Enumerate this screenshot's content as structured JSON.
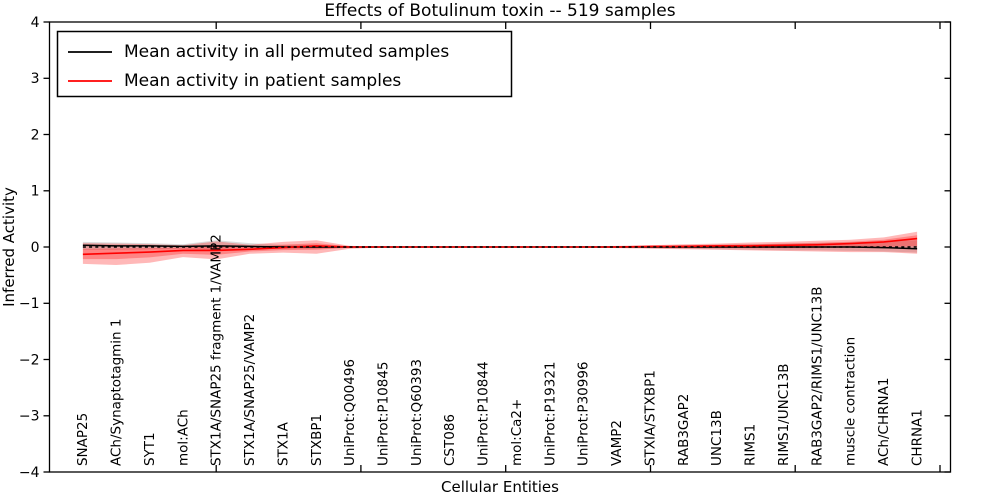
{
  "chart_data": {
    "type": "line",
    "title": "Effects of Botulinum toxin -- 519 samples",
    "xlabel": "Cellular Entities",
    "ylabel": "Inferred Activity",
    "ylim": [
      -4,
      4
    ],
    "yticks": [
      -4,
      -3,
      -2,
      -1,
      0,
      1,
      2,
      3,
      4
    ],
    "ytick_labels": [
      "−4",
      "−3",
      "−2",
      "−1",
      "0",
      "1",
      "2",
      "3",
      "4"
    ],
    "grid": false,
    "zero_line": {
      "y": 0,
      "color": "#000000",
      "style": "dashed"
    },
    "categories": [
      "SNAP25",
      "ACh/Synaptotagmin 1",
      "SYT1",
      "mol:ACh",
      "STX1A/SNAP25 fragment 1/VAMP2",
      "STX1A/SNAP25/VAMP2",
      "STX1A",
      "STXBP1",
      "UniProt:Q00496",
      "UniProt:P10845",
      "UniProt:Q60393",
      "CST086",
      "UniProt:P10844",
      "mol:Ca2+",
      "UniProt:P19321",
      "UniProt:P30996",
      "VAMP2",
      "STXIA/STXBP1",
      "RAB3GAP2",
      "UNC13B",
      "RIMS1",
      "RIMS1/UNC13B",
      "RAB3GAP2/RIMS1/UNC13B",
      "muscle contraction",
      "ACh/CHRNA1",
      "CHRNA1"
    ],
    "series": [
      {
        "name": "Mean activity in all permuted samples",
        "color": "#000000",
        "band_color": "#000000",
        "band_opacity": 0.14,
        "values": [
          0.03,
          0.02,
          0.02,
          0.01,
          0.02,
          0.01,
          0.0,
          0.0,
          0.0,
          0.0,
          0.0,
          0.0,
          0.0,
          0.0,
          0.0,
          0.0,
          0.0,
          0.0,
          0.0,
          0.0,
          0.0,
          0.0,
          0.0,
          0.0,
          -0.01,
          -0.03
        ],
        "band_lo": [
          -0.05,
          -0.05,
          -0.04,
          -0.03,
          -0.06,
          -0.04,
          -0.03,
          -0.03,
          -0.01,
          -0.01,
          -0.01,
          -0.01,
          -0.01,
          -0.01,
          -0.01,
          -0.01,
          -0.01,
          -0.02,
          -0.03,
          -0.04,
          -0.05,
          -0.06,
          -0.06,
          -0.07,
          -0.08,
          -0.1
        ],
        "band_hi": [
          0.09,
          0.08,
          0.07,
          0.05,
          0.12,
          0.07,
          0.04,
          0.04,
          0.01,
          0.01,
          0.01,
          0.01,
          0.01,
          0.01,
          0.01,
          0.01,
          0.01,
          0.02,
          0.03,
          0.04,
          0.05,
          0.06,
          0.07,
          0.08,
          0.1,
          0.12
        ]
      },
      {
        "name": "Mean activity in patient samples",
        "color": "#ff0000",
        "band_color": "#ff0000",
        "band_opacity": 0.28,
        "values": [
          -0.13,
          -0.11,
          -0.09,
          -0.06,
          -0.06,
          -0.04,
          -0.01,
          0.02,
          0.0,
          0.0,
          0.0,
          0.0,
          0.0,
          0.0,
          0.0,
          0.0,
          0.0,
          0.01,
          0.01,
          0.02,
          0.02,
          0.03,
          0.04,
          0.06,
          0.09,
          0.15
        ],
        "band_lo": [
          -0.3,
          -0.32,
          -0.28,
          -0.18,
          -0.22,
          -0.12,
          -0.1,
          -0.12,
          -0.03,
          -0.01,
          -0.01,
          -0.01,
          -0.01,
          -0.01,
          -0.01,
          -0.01,
          -0.02,
          -0.03,
          -0.04,
          -0.05,
          -0.06,
          -0.07,
          -0.08,
          -0.09,
          -0.09,
          -0.12
        ],
        "band_hi": [
          0.07,
          0.06,
          0.05,
          0.03,
          0.1,
          0.04,
          0.09,
          0.12,
          0.02,
          0.01,
          0.01,
          0.01,
          0.01,
          0.01,
          0.01,
          0.01,
          0.02,
          0.03,
          0.05,
          0.06,
          0.08,
          0.09,
          0.11,
          0.13,
          0.17,
          0.27
        ]
      }
    ],
    "legend": {
      "position": "upper left",
      "entries": [
        {
          "label": "Mean activity in all permuted samples",
          "color": "#000000"
        },
        {
          "label": "Mean activity in patient samples",
          "color": "#ff0000"
        }
      ]
    }
  }
}
